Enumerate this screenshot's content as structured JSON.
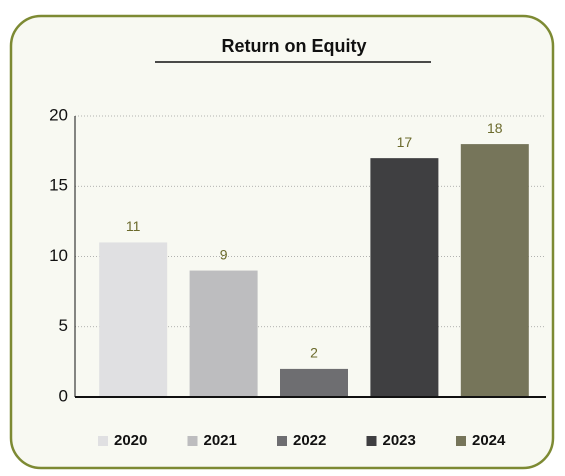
{
  "chart_data": {
    "type": "bar",
    "title": "Return on Equity",
    "categories": [
      "2020",
      "2021",
      "2022",
      "2023",
      "2024"
    ],
    "values": [
      11,
      9,
      2,
      17,
      18
    ],
    "colors": [
      "#e0e0e2",
      "#bdbdbf",
      "#6e6e71",
      "#3f3f41",
      "#76755a"
    ],
    "ylim": [
      0,
      20
    ],
    "yticks": [
      0,
      5,
      10,
      15,
      20
    ],
    "grid": true,
    "legend": "bottom"
  }
}
